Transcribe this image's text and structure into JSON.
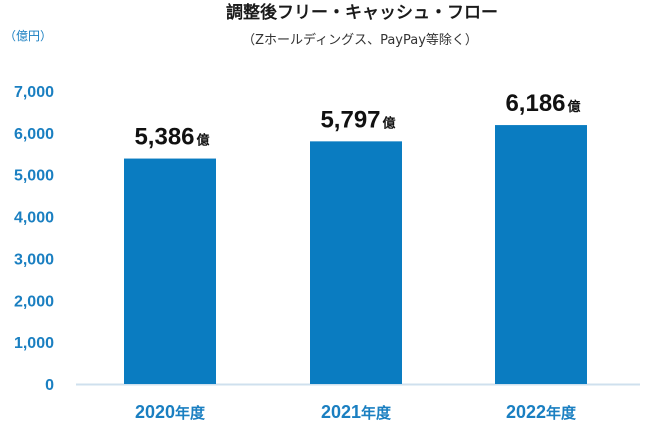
{
  "chart_data": {
    "type": "bar",
    "title": "調整後フリー・キャッシュ・フロー",
    "subtitle": "（Zホールディングス、PayPay等除く）",
    "unit_label": "（億円）",
    "categories": [
      "2020年度",
      "2021年度",
      "2022年度"
    ],
    "values": [
      5386,
      5797,
      6186
    ],
    "data_labels": [
      "5,386",
      "5,797",
      "6,186"
    ],
    "data_label_unit": "億",
    "yticks": [
      "0",
      "1,000",
      "2,000",
      "3,000",
      "4,000",
      "5,000",
      "6,000",
      "7,000"
    ],
    "ytick_values": [
      0,
      1000,
      2000,
      3000,
      4000,
      5000,
      6000,
      7000
    ],
    "ylim": [
      0,
      7000
    ],
    "grid": false,
    "colors": {
      "bar": "#0a7cc1",
      "axis_text": "#1a7fc1",
      "baseline": "#cfe0ee"
    }
  }
}
